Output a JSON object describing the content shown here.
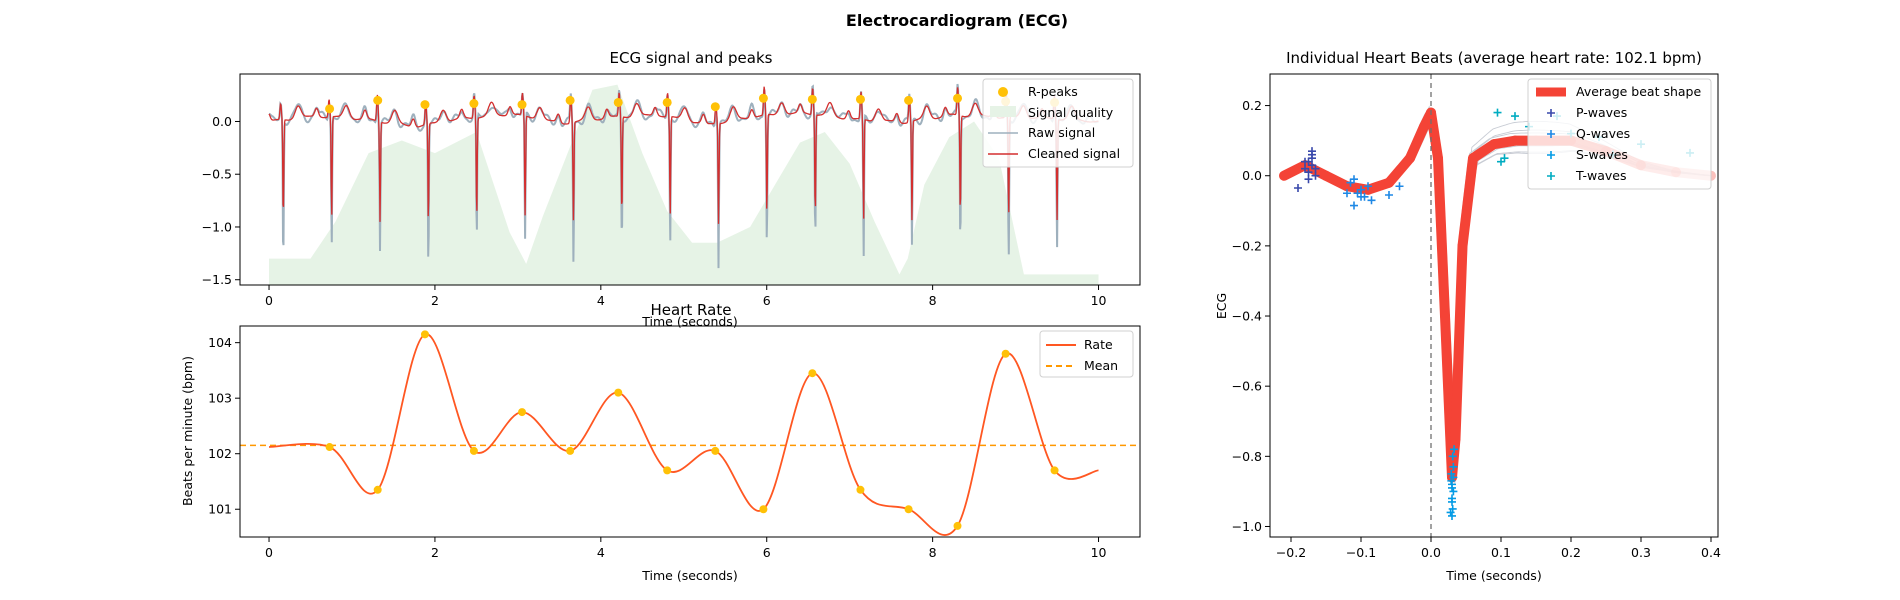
{
  "figure": {
    "title": "Electrocardiogram (ECG)"
  },
  "colors": {
    "raw": "#9eb0bd",
    "cleaned": "#d32f2f",
    "quality_fill": "#e6f3e6",
    "rpeak": "#ffc107",
    "rate": "#ff5722",
    "mean": "#ff9800",
    "avg_beat": "#f44336",
    "p_wave": "#3949ab",
    "q_wave": "#1e88e5",
    "s_wave": "#039be5",
    "t_wave": "#00acc1",
    "beat_lines": "#c8ccd4",
    "vline": "#707070"
  },
  "chart_data": [
    {
      "id": "ecg_signal",
      "type": "line",
      "title": "ECG signal and peaks",
      "xlabel": "Time (seconds)",
      "ylabel": "",
      "xlim": [
        -0.35,
        10.5
      ],
      "ylim": [
        -1.55,
        0.45
      ],
      "xticks": [
        0,
        2,
        4,
        6,
        8,
        10
      ],
      "yticks": [
        0.0,
        -0.5,
        -1.0,
        -1.5
      ],
      "ytick_labels": [
        "0.0",
        "−0.5",
        "−1.0",
        "−1.5"
      ],
      "legend_position": "top-right",
      "r_peaks": {
        "name": "R-peaks",
        "x": [
          0.73,
          1.31,
          1.88,
          2.47,
          3.05,
          3.63,
          4.21,
          4.8,
          5.38,
          5.96,
          6.55,
          7.13,
          7.71,
          8.3,
          8.88,
          9.47
        ],
        "y": [
          0.12,
          0.2,
          0.16,
          0.17,
          0.16,
          0.2,
          0.18,
          0.18,
          0.14,
          0.22,
          0.21,
          0.21,
          0.2,
          0.22,
          0.19,
          0.18
        ]
      },
      "signal_quality": {
        "name": "Signal quality",
        "x": [
          0,
          0.5,
          0.8,
          1.2,
          1.6,
          2.0,
          2.5,
          2.9,
          3.1,
          3.3,
          3.6,
          3.9,
          4.2,
          4.5,
          4.8,
          5.1,
          5.4,
          5.8,
          6.1,
          6.4,
          6.7,
          7.0,
          7.3,
          7.6,
          7.7,
          7.9,
          8.2,
          8.5,
          8.8,
          9.1,
          9.5,
          10.0
        ],
        "y": [
          -1.3,
          -1.3,
          -0.95,
          -0.3,
          -0.18,
          -0.3,
          -0.1,
          -1.05,
          -1.35,
          -0.9,
          -0.3,
          0.3,
          0.35,
          -0.3,
          -0.85,
          -1.15,
          -1.15,
          -1.0,
          -0.6,
          -0.2,
          -0.1,
          -0.4,
          -0.95,
          -1.45,
          -1.3,
          -0.6,
          -0.15,
          0.0,
          -0.35,
          -1.45,
          -1.45,
          -1.45
        ]
      },
      "raw_signal": {
        "name": "Raw signal"
      },
      "cleaned_signal": {
        "name": "Cleaned signal"
      },
      "beat_start": 0.15,
      "beat_interval": 0.583,
      "baseline_wander": [
        0.0,
        0.05,
        0.02,
        -0.05,
        0.03,
        0.07,
        -0.02,
        0.04,
        0.06,
        -0.03,
        0.05,
        0.08,
        0.02,
        -0.01,
        0.06,
        0.04,
        0.03,
        0.0
      ]
    },
    {
      "id": "heart_rate",
      "type": "line",
      "title": "Heart Rate",
      "xlabel": "Time (seconds)",
      "ylabel": "Beats per minute (bpm)",
      "xlim": [
        -0.35,
        10.5
      ],
      "ylim": [
        100.5,
        104.3
      ],
      "xticks": [
        0,
        2,
        4,
        6,
        8,
        10
      ],
      "yticks": [
        101,
        102,
        103,
        104
      ],
      "legend_position": "top-right",
      "rate": {
        "name": "Rate",
        "x": [
          0,
          0.73,
          1.31,
          1.88,
          2.47,
          3.05,
          3.63,
          4.21,
          4.8,
          5.38,
          5.96,
          6.55,
          7.13,
          7.71,
          8.3,
          8.88,
          9.47,
          10.0
        ],
        "y": [
          102.12,
          102.12,
          101.35,
          104.15,
          102.05,
          102.75,
          102.05,
          103.1,
          101.7,
          102.05,
          101.0,
          103.45,
          101.35,
          101.0,
          100.7,
          103.8,
          101.7,
          101.7
        ]
      },
      "mean": {
        "name": "Mean",
        "value": 102.15
      }
    },
    {
      "id": "heart_beats",
      "type": "line",
      "title": "Individual Heart Beats (average heart rate: 102.1 bpm)",
      "xlabel": "Time (seconds)",
      "ylabel": "ECG",
      "xlim": [
        -0.23,
        0.41
      ],
      "ylim": [
        -1.03,
        0.29
      ],
      "xticks": [
        -0.2,
        -0.1,
        0.0,
        0.1,
        0.2,
        0.3,
        0.4
      ],
      "xtick_labels": [
        "−0.2",
        "−0.1",
        "0.0",
        "0.1",
        "0.2",
        "0.3",
        "0.4"
      ],
      "yticks": [
        0.2,
        0.0,
        -0.2,
        -0.4,
        -0.6,
        -0.8,
        -1.0
      ],
      "ytick_labels": [
        "0.2",
        "0.0",
        "−0.2",
        "−0.4",
        "−0.6",
        "−0.8",
        "−1.0"
      ],
      "legend_position": "top-right",
      "average_beat": {
        "name": "Average beat shape",
        "x": [
          -0.21,
          -0.18,
          -0.15,
          -0.12,
          -0.09,
          -0.06,
          -0.03,
          -0.01,
          0.0,
          0.01,
          0.02,
          0.03,
          0.035,
          0.045,
          0.06,
          0.09,
          0.12,
          0.15,
          0.2,
          0.25,
          0.3,
          0.35,
          0.4
        ],
        "y": [
          0.0,
          0.03,
          0.0,
          -0.03,
          -0.04,
          -0.02,
          0.05,
          0.14,
          0.18,
          0.05,
          -0.4,
          -0.86,
          -0.75,
          -0.2,
          0.05,
          0.09,
          0.1,
          0.1,
          0.1,
          0.07,
          0.03,
          0.01,
          0.0
        ]
      },
      "p_waves": {
        "name": "P-waves",
        "x": [
          -0.19,
          -0.18,
          -0.175,
          -0.17,
          -0.17,
          -0.165,
          -0.175,
          -0.17,
          -0.18,
          -0.165,
          -0.17,
          -0.175
        ],
        "y": [
          -0.035,
          0.02,
          0.04,
          0.06,
          0.03,
          0.0,
          0.01,
          0.05,
          0.04,
          0.02,
          0.07,
          -0.01
        ]
      },
      "q_waves": {
        "name": "Q-waves",
        "x": [
          -0.12,
          -0.115,
          -0.11,
          -0.1,
          -0.095,
          -0.09,
          -0.085,
          -0.105,
          -0.06,
          -0.045,
          -0.11,
          -0.1
        ],
        "y": [
          -0.05,
          -0.02,
          -0.085,
          -0.04,
          -0.06,
          -0.03,
          -0.07,
          -0.05,
          -0.055,
          -0.03,
          -0.01,
          -0.06
        ]
      },
      "s_waves": {
        "name": "S-waves",
        "x": [
          0.028,
          0.03,
          0.032,
          0.03,
          0.029,
          0.031,
          0.033,
          0.03,
          0.032,
          0.029,
          0.031,
          0.03,
          0.032,
          0.03
        ],
        "y": [
          -0.96,
          -0.97,
          -0.9,
          -0.88,
          -0.85,
          -0.8,
          -0.78,
          -0.92,
          -0.83,
          -0.87,
          -0.95,
          -0.93,
          -0.86,
          -0.89
        ]
      },
      "t_waves": {
        "name": "T-waves",
        "x": [
          0.095,
          0.1,
          0.12,
          0.14,
          0.18,
          0.2,
          0.24,
          0.26,
          0.3,
          0.37,
          0.105
        ],
        "y": [
          0.18,
          0.04,
          0.17,
          0.14,
          0.17,
          0.12,
          0.11,
          0.06,
          0.09,
          0.065,
          0.05
        ]
      },
      "beat_curves": [
        {
          "dx": -0.006,
          "dy": 0.02,
          "amp": 1.02
        },
        {
          "dx": 0.004,
          "dy": -0.03,
          "amp": 0.97
        },
        {
          "dx": -0.002,
          "dy": 0.05,
          "amp": 1.05
        },
        {
          "dx": 0.006,
          "dy": -0.01,
          "amp": 0.95
        },
        {
          "dx": 0.0,
          "dy": 0.03,
          "amp": 1.0
        },
        {
          "dx": 0.003,
          "dy": -0.04,
          "amp": 1.03
        },
        {
          "dx": -0.004,
          "dy": 0.0,
          "amp": 0.98
        }
      ],
      "vline_x": 0.0
    }
  ]
}
